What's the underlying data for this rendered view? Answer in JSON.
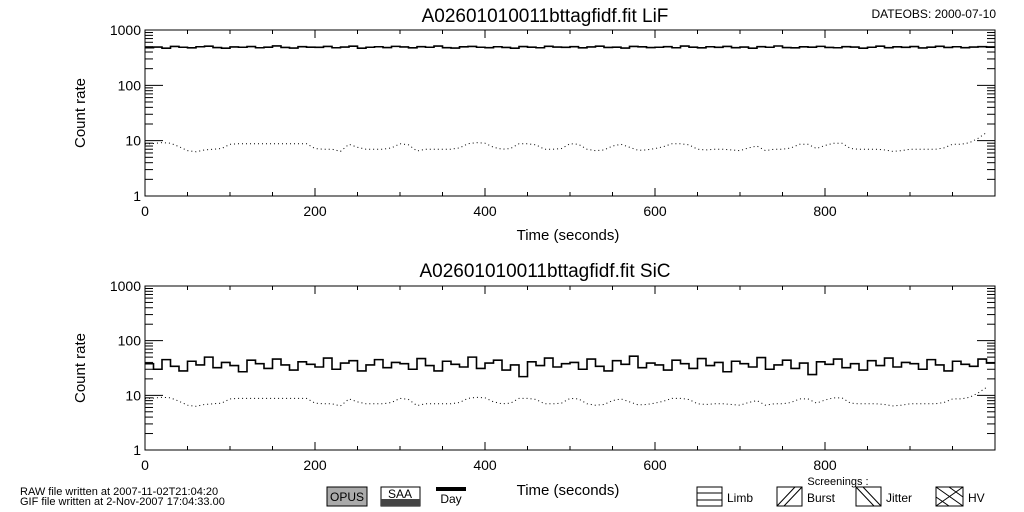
{
  "header": {
    "dateobs": "DATEOBS: 2000-07-10"
  },
  "footer": {
    "raw_line": "RAW file written at 2007-11-02T21:04:20",
    "gif_line": "GIF file written at  2-Nov-2007 17:04:33.00",
    "opus": "OPUS",
    "saa": "SAA",
    "day": "Day",
    "screenings_label": "Screenings :",
    "limb": "Limb",
    "burst": "Burst",
    "jitter": "Jitter",
    "hv": "HV"
  },
  "chart_data": [
    {
      "type": "line",
      "title": "A02601010011bttagfidf.fit  LiF",
      "xlabel": "Time (seconds)",
      "ylabel": "Count rate",
      "xlim": [
        0,
        1000
      ],
      "ylim": [
        1,
        1000
      ],
      "yscale": "log",
      "xticks": [
        "0",
        "200",
        "400",
        "600",
        "800"
      ],
      "yticks": [
        "1",
        "10",
        "100",
        "1000"
      ],
      "x_step": 10,
      "series": [
        {
          "style": "solid",
          "values": [
            480,
            492,
            470,
            505,
            488,
            476,
            498,
            510,
            482,
            470,
            495,
            488,
            502,
            478,
            490,
            515,
            484,
            472,
            500,
            490,
            486,
            505,
            478,
            492,
            510,
            470,
            488,
            498,
            482,
            506,
            494,
            476,
            500,
            488,
            512,
            480,
            472,
            496,
            505,
            488,
            480,
            498,
            485,
            470,
            502,
            490,
            478,
            508,
            492,
            486,
            500,
            476,
            494,
            510,
            484,
            490,
            472,
            505,
            496,
            482,
            488,
            500,
            478,
            512,
            490,
            476,
            498,
            486,
            504,
            480,
            492,
            470,
            500,
            488,
            514,
            482,
            476,
            496,
            490,
            506,
            484,
            478,
            500,
            492,
            470,
            488,
            510,
            480,
            496,
            486,
            502,
            474,
            490,
            508,
            484,
            498,
            480,
            492,
            500,
            488
          ]
        },
        {
          "style": "dotted",
          "values": [
            8.7,
            8.9,
            9.2,
            9.0,
            7.8,
            6.6,
            6.3,
            6.8,
            7.0,
            7.2,
            8.6,
            8.8,
            8.8,
            8.8,
            8.8,
            8.8,
            8.8,
            8.8,
            8.8,
            8.8,
            7.2,
            7.0,
            7.0,
            6.4,
            8.6,
            7.6,
            7.0,
            7.0,
            7.0,
            7.4,
            8.8,
            8.4,
            6.5,
            7.0,
            7.0,
            7.0,
            7.0,
            7.4,
            8.8,
            9.2,
            9.0,
            7.6,
            7.0,
            7.2,
            8.8,
            8.8,
            8.4,
            7.0,
            7.0,
            7.2,
            8.8,
            8.6,
            7.0,
            6.6,
            6.8,
            8.0,
            8.6,
            7.6,
            6.7,
            6.8,
            7.2,
            7.8,
            8.8,
            8.8,
            8.4,
            7.0,
            6.8,
            7.0,
            7.0,
            6.8,
            6.6,
            7.4,
            8.0,
            6.6,
            7.0,
            7.0,
            7.4,
            8.6,
            8.6,
            7.2,
            8.2,
            9.0,
            9.0,
            7.2,
            7.0,
            7.0,
            7.0,
            6.8,
            6.4,
            6.6,
            7.0,
            7.0,
            7.0,
            7.0,
            7.4,
            8.6,
            8.6,
            9.2,
            11,
            14
          ]
        }
      ]
    },
    {
      "type": "line",
      "title": "A02601010011bttagfidf.fit  SiC",
      "xlabel": "Time (seconds)",
      "ylabel": "Count rate",
      "xlim": [
        0,
        1000
      ],
      "ylim": [
        1,
        1000
      ],
      "yscale": "log",
      "xticks": [
        "0",
        "200",
        "400",
        "600",
        "800"
      ],
      "yticks": [
        "1",
        "10",
        "100",
        "1000"
      ],
      "x_step": 10,
      "series": [
        {
          "style": "solid",
          "values": [
            38,
            30,
            45,
            34,
            28,
            42,
            36,
            50,
            32,
            40,
            35,
            27,
            44,
            38,
            31,
            46,
            36,
            29,
            41,
            37,
            33,
            48,
            30,
            39,
            43,
            28,
            36,
            45,
            32,
            40,
            38,
            30,
            47,
            35,
            28,
            42,
            37,
            33,
            50,
            31,
            39,
            44,
            29,
            36,
            22,
            41,
            35,
            48,
            33,
            38,
            40,
            30,
            46,
            34,
            28,
            43,
            37,
            52,
            32,
            39,
            36,
            29,
            44,
            38,
            31,
            47,
            35,
            40,
            27,
            42,
            38,
            33,
            49,
            30,
            36,
            44,
            31,
            39,
            24,
            41,
            37,
            46,
            32,
            38,
            29,
            43,
            35,
            48,
            33,
            40,
            38,
            30,
            45,
            36,
            28,
            42,
            37,
            34,
            46,
            39
          ]
        },
        {
          "style": "dotted",
          "values": [
            8.7,
            8.9,
            9.2,
            9.0,
            7.8,
            6.6,
            6.3,
            6.8,
            7.0,
            7.2,
            8.6,
            8.8,
            8.8,
            8.8,
            8.8,
            8.8,
            8.8,
            8.8,
            8.8,
            8.8,
            7.2,
            7.0,
            7.0,
            6.4,
            8.6,
            7.6,
            7.0,
            7.0,
            7.0,
            7.4,
            8.8,
            8.4,
            6.5,
            7.0,
            7.0,
            7.0,
            7.0,
            7.4,
            8.8,
            9.2,
            9.0,
            7.6,
            7.0,
            7.2,
            8.8,
            8.8,
            8.4,
            7.0,
            7.0,
            7.2,
            8.8,
            8.6,
            7.0,
            6.6,
            6.8,
            8.0,
            8.6,
            7.6,
            6.7,
            6.8,
            7.2,
            7.8,
            8.8,
            8.8,
            8.4,
            7.0,
            6.8,
            7.0,
            7.0,
            6.8,
            6.6,
            7.4,
            8.0,
            6.6,
            7.0,
            7.0,
            7.4,
            8.6,
            8.6,
            7.2,
            8.2,
            9.0,
            9.0,
            7.2,
            7.0,
            7.0,
            7.0,
            6.8,
            6.4,
            6.6,
            7.0,
            7.0,
            7.0,
            7.0,
            7.4,
            8.6,
            8.6,
            9.2,
            11,
            14
          ]
        }
      ]
    }
  ]
}
